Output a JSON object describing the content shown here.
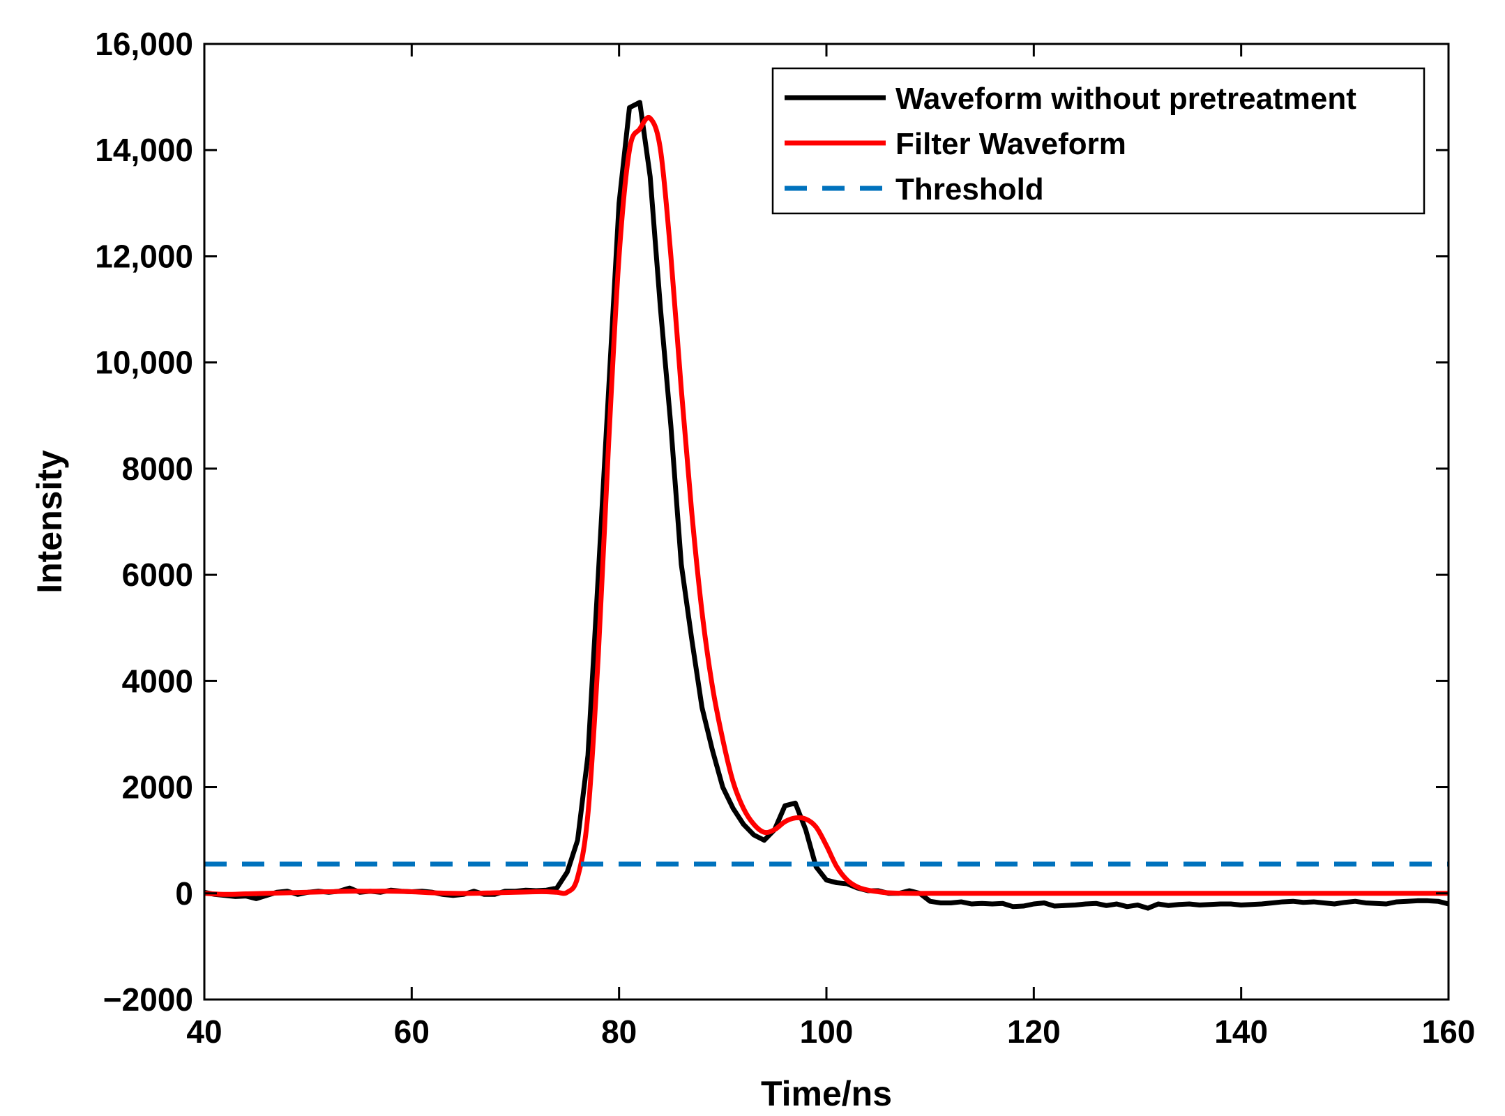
{
  "chart_data": {
    "type": "line",
    "title": "",
    "xlabel": "Time/ns",
    "ylabel": "Intensity",
    "xlim": [
      40,
      160
    ],
    "ylim": [
      -2000,
      16000
    ],
    "xticks": [
      40,
      60,
      80,
      100,
      120,
      140,
      160
    ],
    "yticks": [
      -2000,
      0,
      2000,
      4000,
      6000,
      8000,
      10000,
      12000,
      14000,
      16000
    ],
    "xtick_labels": [
      "40",
      "60",
      "80",
      "100",
      "120",
      "140",
      "160"
    ],
    "ytick_labels": [
      "−2000",
      "0",
      "2000",
      "4000",
      "6000",
      "8000",
      "10,000",
      "12,000",
      "14,000",
      "16,000"
    ],
    "grid": false,
    "legend_position": "top-right",
    "series": [
      {
        "name": "Waveform without pretreatment",
        "color": "#000000",
        "style": "solid",
        "x": [
          40,
          41,
          42,
          43,
          44,
          45,
          46,
          47,
          48,
          49,
          50,
          51,
          52,
          53,
          54,
          55,
          56,
          57,
          58,
          59,
          60,
          61,
          62,
          63,
          64,
          65,
          66,
          67,
          68,
          69,
          70,
          71,
          72,
          73,
          74,
          75,
          76,
          77,
          78,
          79,
          80,
          81,
          82,
          83,
          84,
          85,
          86,
          87,
          88,
          89,
          90,
          91,
          92,
          93,
          94,
          95,
          96,
          97,
          98,
          99,
          100,
          101,
          102,
          103,
          104,
          105,
          106,
          107,
          108,
          109,
          110,
          111,
          112,
          113,
          114,
          115,
          116,
          117,
          118,
          119,
          120,
          121,
          122,
          123,
          124,
          125,
          126,
          127,
          128,
          129,
          130,
          131,
          132,
          133,
          134,
          135,
          136,
          137,
          138,
          139,
          140,
          141,
          142,
          143,
          144,
          145,
          146,
          147,
          148,
          149,
          150,
          151,
          152,
          153,
          154,
          155,
          156,
          157,
          158,
          159,
          160
        ],
        "values": [
          20,
          -20,
          -40,
          -60,
          -50,
          -100,
          -40,
          20,
          40,
          -20,
          20,
          40,
          20,
          40,
          100,
          20,
          40,
          20,
          60,
          40,
          30,
          40,
          20,
          -20,
          -40,
          -20,
          40,
          -20,
          -20,
          40,
          40,
          60,
          50,
          60,
          100,
          400,
          1000,
          2600,
          6000,
          9500,
          13000,
          14800,
          14900,
          13500,
          11000,
          8800,
          6200,
          4800,
          3500,
          2700,
          2000,
          1600,
          1300,
          1100,
          1000,
          1200,
          1650,
          1700,
          1200,
          500,
          250,
          200,
          180,
          100,
          50,
          50,
          0,
          0,
          50,
          0,
          -150,
          -180,
          -180,
          -160,
          -200,
          -190,
          -200,
          -190,
          -250,
          -240,
          -200,
          -180,
          -240,
          -230,
          -220,
          -200,
          -190,
          -230,
          -200,
          -250,
          -220,
          -280,
          -200,
          -230,
          -210,
          -200,
          -220,
          -210,
          -200,
          -200,
          -220,
          -210,
          -200,
          -180,
          -160,
          -150,
          -170,
          -160,
          -180,
          -200,
          -170,
          -150,
          -180,
          -190,
          -200,
          -160,
          -150,
          -140,
          -140,
          -150,
          -200
        ],
        "smooth": false
      },
      {
        "name": "Filter Waveform",
        "color": "#ff0000",
        "style": "solid",
        "x": [
          40,
          42,
          44,
          46,
          48,
          50,
          52,
          54,
          56,
          58,
          60,
          62,
          64,
          66,
          68,
          70,
          72,
          73,
          74,
          75,
          76,
          77,
          78,
          79,
          80,
          81,
          82,
          83,
          84,
          85,
          86,
          87,
          88,
          89,
          90,
          91,
          92,
          93,
          94,
          95,
          96,
          97,
          98,
          99,
          100,
          101,
          102,
          103,
          104,
          105,
          106,
          108,
          110,
          115,
          120,
          130,
          140,
          150,
          160
        ],
        "values": [
          0,
          -20,
          -10,
          0,
          10,
          20,
          30,
          40,
          40,
          40,
          30,
          10,
          0,
          0,
          10,
          20,
          30,
          30,
          20,
          20,
          300,
          1500,
          4500,
          8500,
          12000,
          14000,
          14400,
          14600,
          14000,
          12000,
          9500,
          7200,
          5300,
          3900,
          2900,
          2100,
          1600,
          1300,
          1150,
          1200,
          1350,
          1420,
          1400,
          1250,
          900,
          500,
          250,
          120,
          60,
          30,
          10,
          0,
          0,
          0,
          0,
          0,
          0,
          0,
          0
        ],
        "smooth": true
      },
      {
        "name": "Threshold",
        "color": "#0072bd",
        "style": "dashed",
        "x": [
          40,
          160
        ],
        "values": [
          550,
          550
        ],
        "smooth": false
      }
    ]
  }
}
